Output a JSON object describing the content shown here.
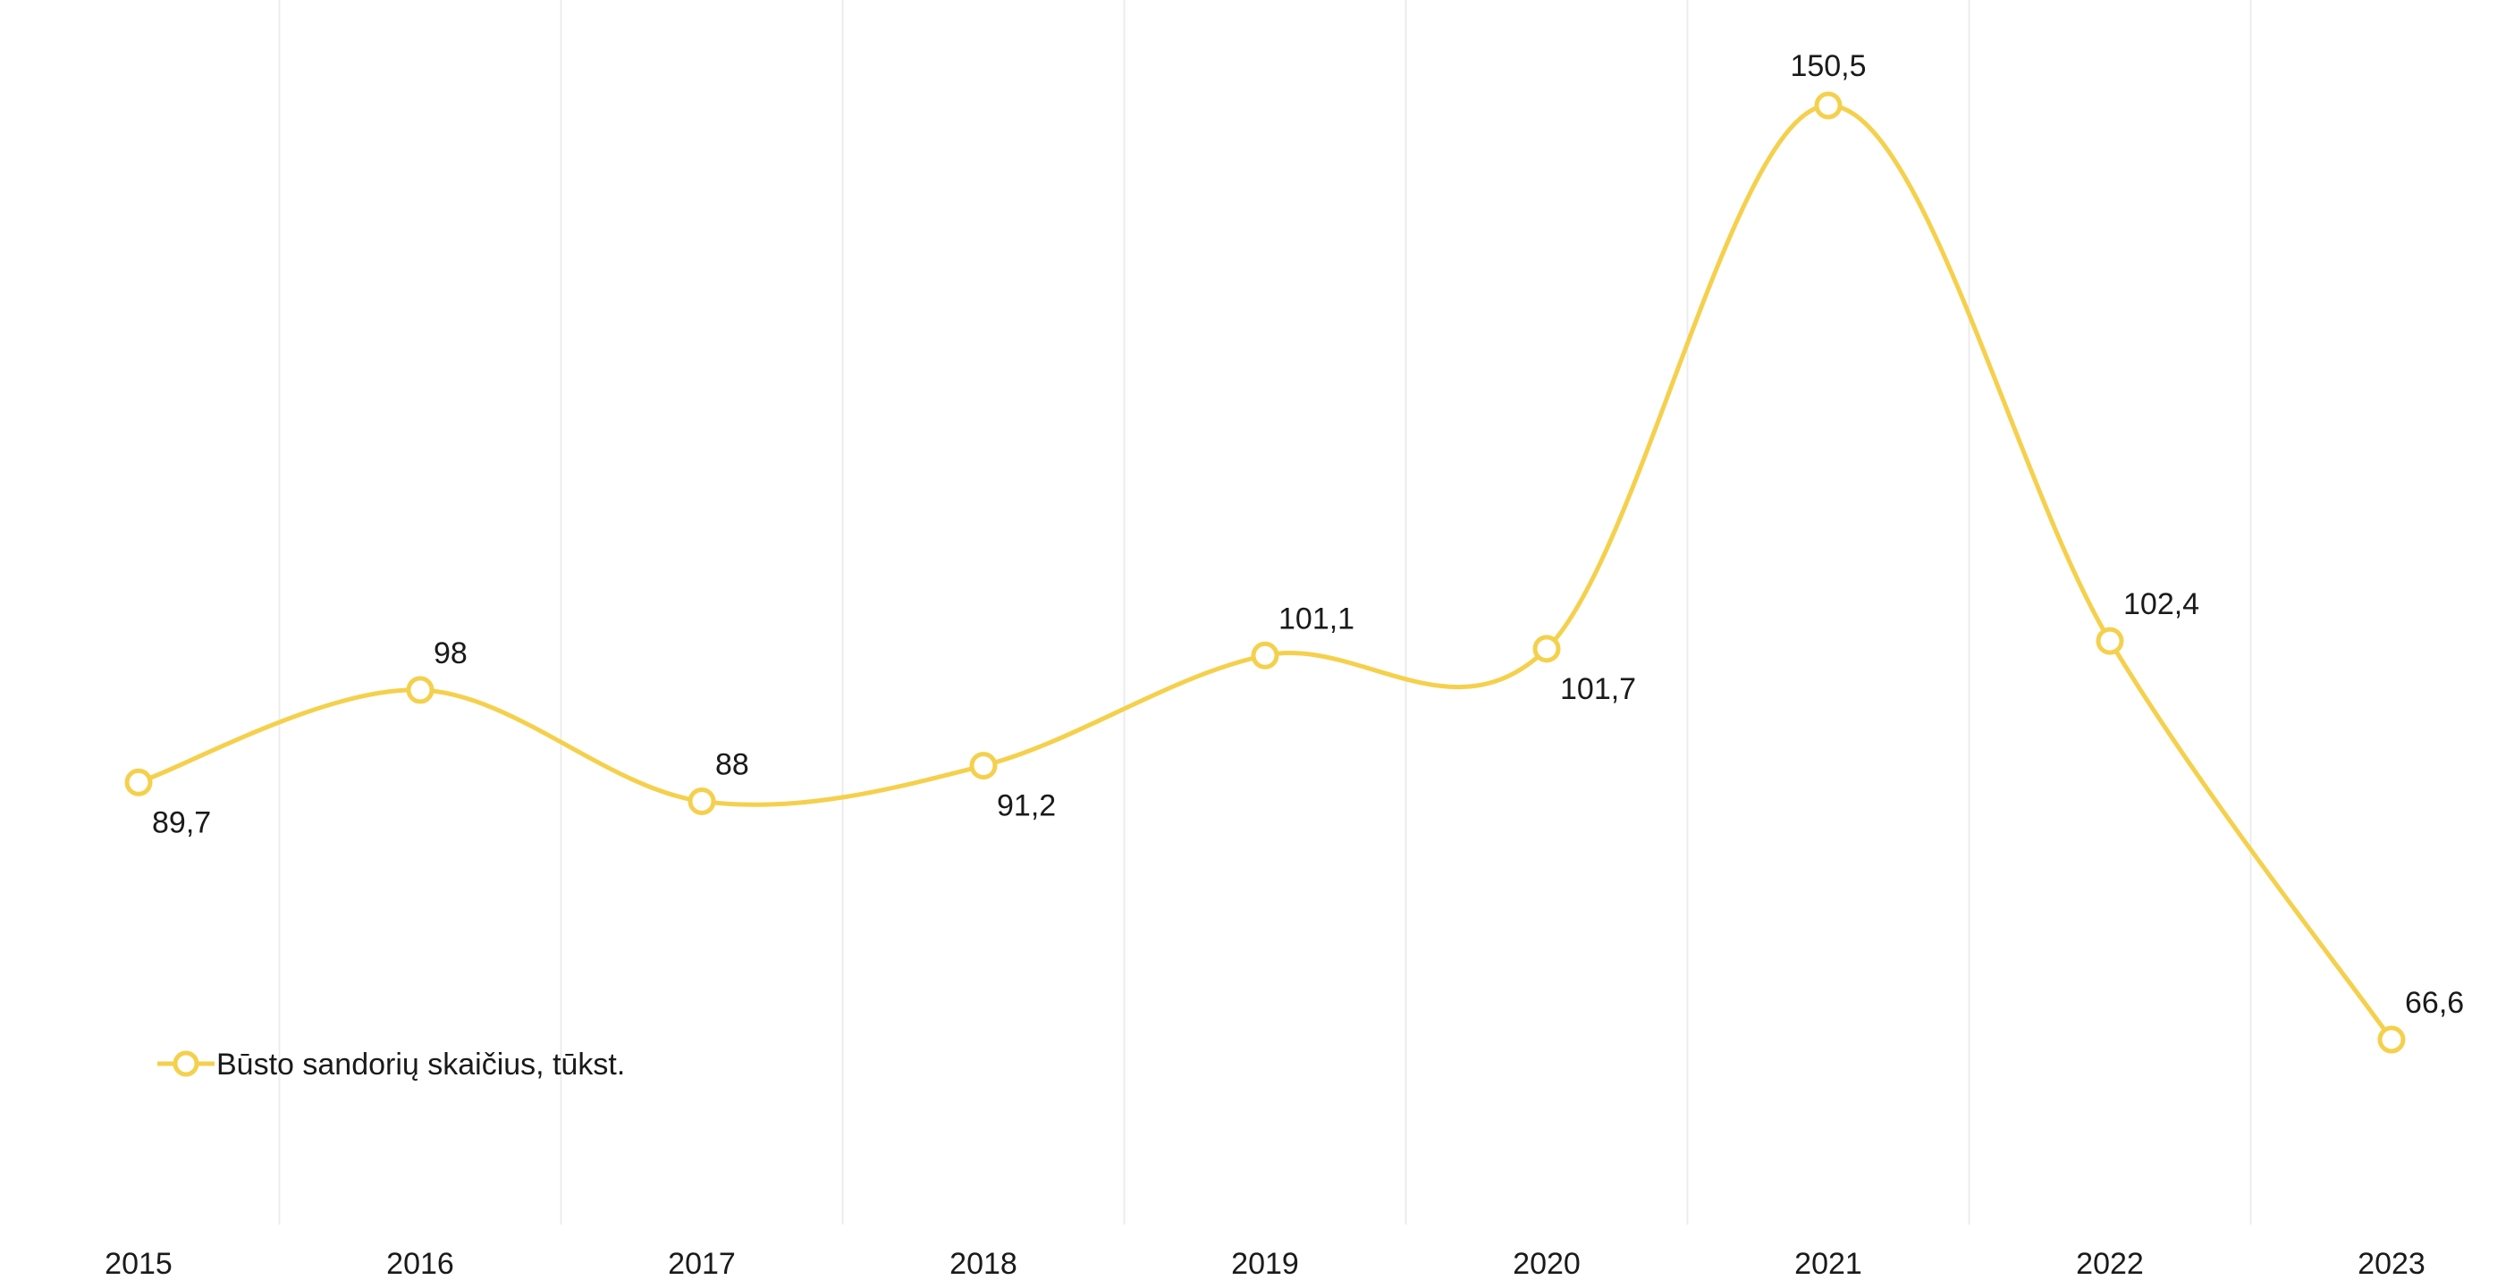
{
  "chart_data": {
    "type": "line",
    "categories": [
      "2015",
      "2016",
      "2017",
      "2018",
      "2019",
      "2020",
      "2021",
      "2022",
      "2023"
    ],
    "series": [
      {
        "name": "Būsto sandorių skaičius, tūkst.",
        "values": [
          89.7,
          98,
          88,
          91.2,
          101.1,
          101.7,
          150.5,
          102.4,
          66.6
        ],
        "labels": [
          "89,7",
          "98",
          "88",
          "91,2",
          "101,1",
          "101,7",
          "150,5",
          "102,4",
          "66,6"
        ],
        "label_positions": [
          "below",
          "above",
          "above",
          "below",
          "above",
          "below",
          "above",
          "above",
          "above"
        ]
      }
    ],
    "title": "",
    "xlabel": "",
    "ylabel": "",
    "ylim": [
      40,
      160
    ],
    "grid": {
      "vertical": true,
      "horizontal": false
    },
    "legend": {
      "placement": "bottom-left"
    },
    "colors": {
      "series": "#f5d04c",
      "grid": "#ececec",
      "text": "#1a1a1a"
    }
  }
}
